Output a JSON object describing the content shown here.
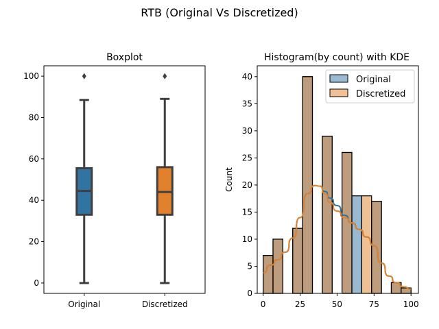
{
  "figure": {
    "suptitle": "RTB (Original Vs Discretized)"
  },
  "chart_data": [
    {
      "type": "box",
      "title": "Boxplot",
      "xlabel": "",
      "ylabel": "",
      "categories": [
        "Original",
        "Discretized"
      ],
      "ylim": [
        -5,
        105
      ],
      "yticks": [
        0,
        20,
        40,
        60,
        80,
        100
      ],
      "grid": false,
      "boxes": [
        {
          "name": "Original",
          "color": "#3274a1",
          "whisker_low": 0,
          "q1": 33,
          "median": 44.5,
          "q3": 55.5,
          "whisker_high": 88.5,
          "outliers": [
            100
          ]
        },
        {
          "name": "Discretized",
          "color": "#e1812c",
          "whisker_low": 0,
          "q1": 33,
          "median": 44,
          "q3": 56,
          "whisker_high": 89,
          "outliers": [
            100
          ]
        }
      ]
    },
    {
      "type": "bar",
      "subtype": "histogram-with-kde",
      "title": "Histogram(by count) with KDE",
      "xlabel": "",
      "ylabel": "Count",
      "xlim": [
        -4,
        105
      ],
      "ylim": [
        0,
        42
      ],
      "xticks": [
        0,
        25,
        50,
        75,
        100
      ],
      "yticks": [
        0,
        5,
        10,
        15,
        20,
        25,
        30,
        35,
        40
      ],
      "grid": false,
      "legend": {
        "placement": "top-right"
      },
      "series": [
        {
          "name": "Original",
          "color": "#3274a1",
          "bins": [
            {
              "x0": 0,
              "x1": 6.67,
              "count": 7
            },
            {
              "x0": 6.67,
              "x1": 13.33,
              "count": 10
            },
            {
              "x0": 20,
              "x1": 26.67,
              "count": 12
            },
            {
              "x0": 26.67,
              "x1": 33.33,
              "count": 40
            },
            {
              "x0": 40,
              "x1": 46.67,
              "count": 29
            },
            {
              "x0": 53.33,
              "x1": 60,
              "count": 26
            },
            {
              "x0": 60,
              "x1": 66.67,
              "count": 18
            },
            {
              "x0": 73.33,
              "x1": 80,
              "count": 17
            },
            {
              "x0": 86.67,
              "x1": 93.33,
              "count": 2
            },
            {
              "x0": 93.33,
              "x1": 100,
              "count": 1
            }
          ],
          "kde": {
            "x": [
              0,
              5,
              10,
              15,
              20,
              25,
              30,
              35,
              38,
              42,
              45,
              50,
              55,
              60,
              65,
              70,
              75,
              80,
              85,
              90,
              95,
              100
            ],
            "y": [
              3.8,
              5.2,
              6.2,
              7.6,
              10.2,
              14,
              18.4,
              19.9,
              19.8,
              18.8,
              17.6,
              16.2,
              14.4,
              13,
              11.8,
              10.4,
              8.8,
              5.6,
              3.2,
              2,
              1.2,
              0.8
            ]
          }
        },
        {
          "name": "Discretized",
          "color": "#e1812c",
          "bins": [
            {
              "x0": 0,
              "x1": 6.67,
              "count": 7
            },
            {
              "x0": 6.67,
              "x1": 13.33,
              "count": 10
            },
            {
              "x0": 20,
              "x1": 26.67,
              "count": 12
            },
            {
              "x0": 26.67,
              "x1": 33.33,
              "count": 40
            },
            {
              "x0": 40,
              "x1": 46.67,
              "count": 29
            },
            {
              "x0": 53.33,
              "x1": 60,
              "count": 26
            },
            {
              "x0": 66.67,
              "x1": 73.33,
              "count": 18
            },
            {
              "x0": 73.33,
              "x1": 80,
              "count": 17
            },
            {
              "x0": 86.67,
              "x1": 93.33,
              "count": 2
            },
            {
              "x0": 93.33,
              "x1": 100,
              "count": 1
            }
          ],
          "kde": {
            "x": [
              0,
              5,
              10,
              15,
              20,
              25,
              30,
              35,
              38,
              42,
              45,
              50,
              55,
              60,
              65,
              70,
              75,
              80,
              85,
              90,
              95,
              100
            ],
            "y": [
              3.8,
              5.2,
              6.2,
              7.6,
              10.2,
              14,
              18.4,
              19.9,
              19.8,
              18.4,
              16.8,
              15.2,
              14,
              13,
              11.8,
              10.4,
              8.8,
              5.6,
              3.2,
              2,
              1.2,
              0.8
            ]
          }
        }
      ]
    }
  ]
}
